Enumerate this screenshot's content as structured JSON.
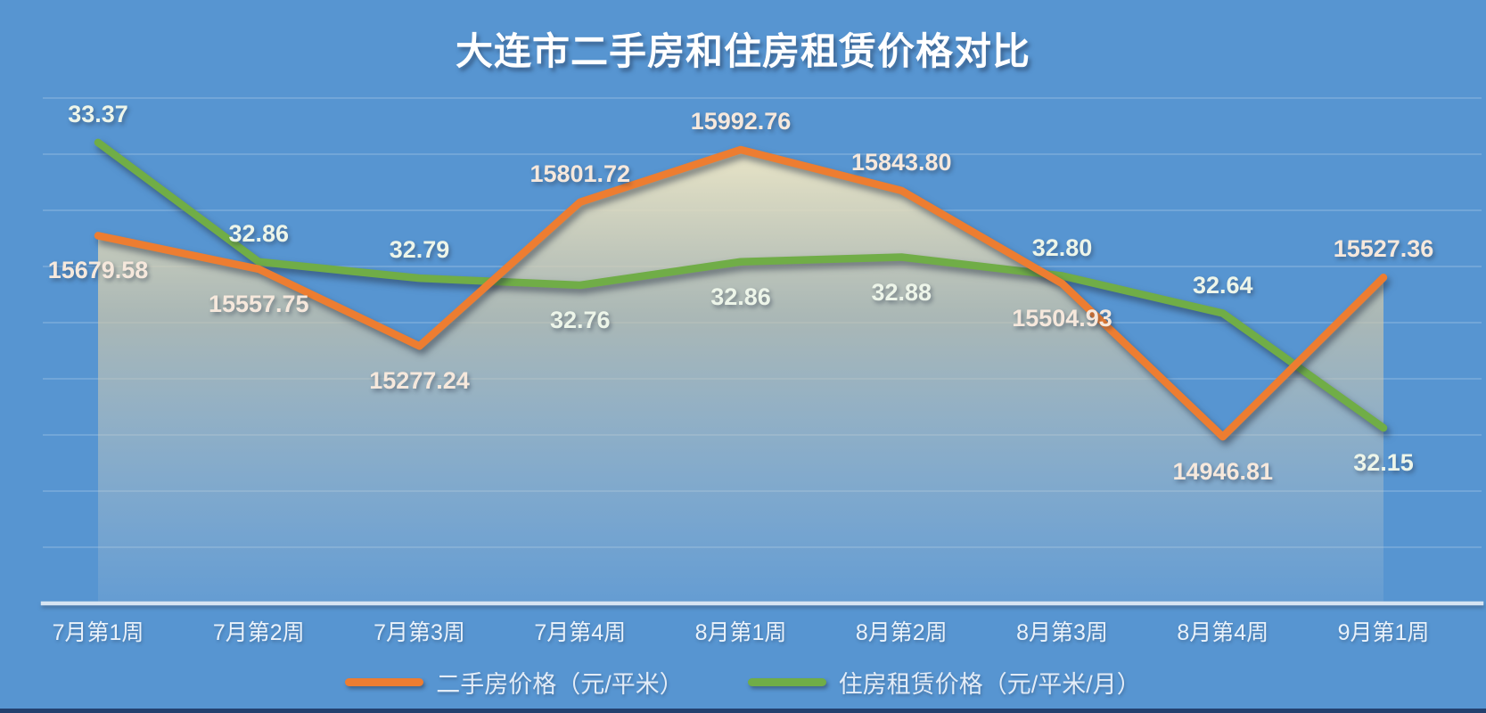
{
  "title": "大连市二手房和住房租赁价格对比",
  "colors": {
    "background": "#5795D1",
    "secondhand": "#ED7D31",
    "rental": "#70AD47",
    "axis_line": "#D7E4F2",
    "gridline": "rgba(255,255,255,0.16)",
    "secondhand_label": "#F6E8DC",
    "rental_label": "#EDF5E9",
    "bottom_strip": "#23406E",
    "fill_top": "rgba(241,234,200,0.97)",
    "fill_mid": "rgba(205,198,170,0.70)",
    "fill_bottom": "rgba(200,210,215,0.12)"
  },
  "chart_data": {
    "type": "line",
    "title": "大连市二手房和住房租赁价格对比",
    "categories": [
      "7月第1周",
      "7月第2周",
      "7月第3周",
      "7月第4周",
      "8月第1周",
      "8月第2周",
      "8月第3周",
      "8月第4周",
      "9月第1周"
    ],
    "series": [
      {
        "name": "二手房价格（元/平米）",
        "unit": "元/平米",
        "color": "#ED7D31",
        "label_color": "#F6E8DC",
        "axis": "price_axis",
        "area_fill": true,
        "values": [
          15679.58,
          15557.75,
          15277.24,
          15801.72,
          15992.76,
          15843.8,
          15504.93,
          14946.81,
          15527.36
        ],
        "label_side": [
          "below",
          "below",
          "below",
          "above",
          "above",
          "above",
          "below",
          "below",
          "above"
        ]
      },
      {
        "name": "住房租赁价格（元/平米/月）",
        "unit": "元/平米/月",
        "color": "#70AD47",
        "label_color": "#EDF5E9",
        "axis": "rent_axis",
        "area_fill": false,
        "values": [
          33.37,
          32.86,
          32.79,
          32.76,
          32.86,
          32.88,
          32.8,
          32.64,
          32.15
        ],
        "label_side": [
          "above",
          "above",
          "above",
          "below",
          "below",
          "below",
          "above",
          "above",
          "below"
        ]
      }
    ],
    "axes": {
      "price_axis": {
        "min": 14340,
        "max": 16181
      },
      "rent_axis": {
        "min": 31.4,
        "max": 33.56
      }
    },
    "grid": true,
    "legend_position": "bottom",
    "data_labels_decimals": 2
  }
}
